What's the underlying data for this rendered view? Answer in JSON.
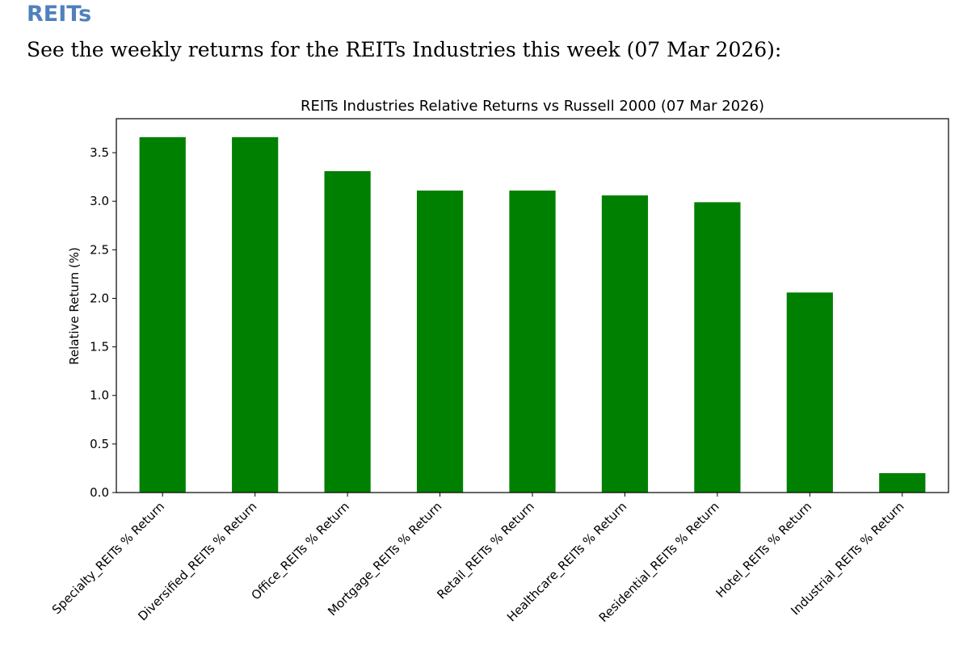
{
  "section": {
    "heading": "REITs",
    "intro": "See the weekly returns for the REITs Industries this week (07 Mar 2026):"
  },
  "chart_data": {
    "type": "bar",
    "title": "REITs Industries Relative Returns vs Russell 2000 (07 Mar 2026)",
    "xlabel": "",
    "ylabel": "Relative Return (%)",
    "categories": [
      "Specialty_REITs % Return",
      "Diversified_REITs % Return",
      "Office_REITs % Return",
      "Mortgage_REITs % Return",
      "Retail_REITs % Return",
      "Healthcare_REITs % Return",
      "Residential_REITs % Return",
      "Hotel_REITs % Return",
      "Industrial_REITs % Return"
    ],
    "values": [
      3.66,
      3.66,
      3.31,
      3.11,
      3.11,
      3.06,
      2.99,
      2.06,
      0.2
    ],
    "ylim": [
      0,
      3.85
    ],
    "yticks": [
      0.0,
      0.5,
      1.0,
      1.5,
      2.0,
      2.5,
      3.0,
      3.5
    ],
    "ytick_labels": [
      "0.0",
      "0.5",
      "1.0",
      "1.5",
      "2.0",
      "2.5",
      "3.0",
      "3.5"
    ],
    "bar_color": "#008000",
    "grid": false,
    "legend": "none"
  }
}
